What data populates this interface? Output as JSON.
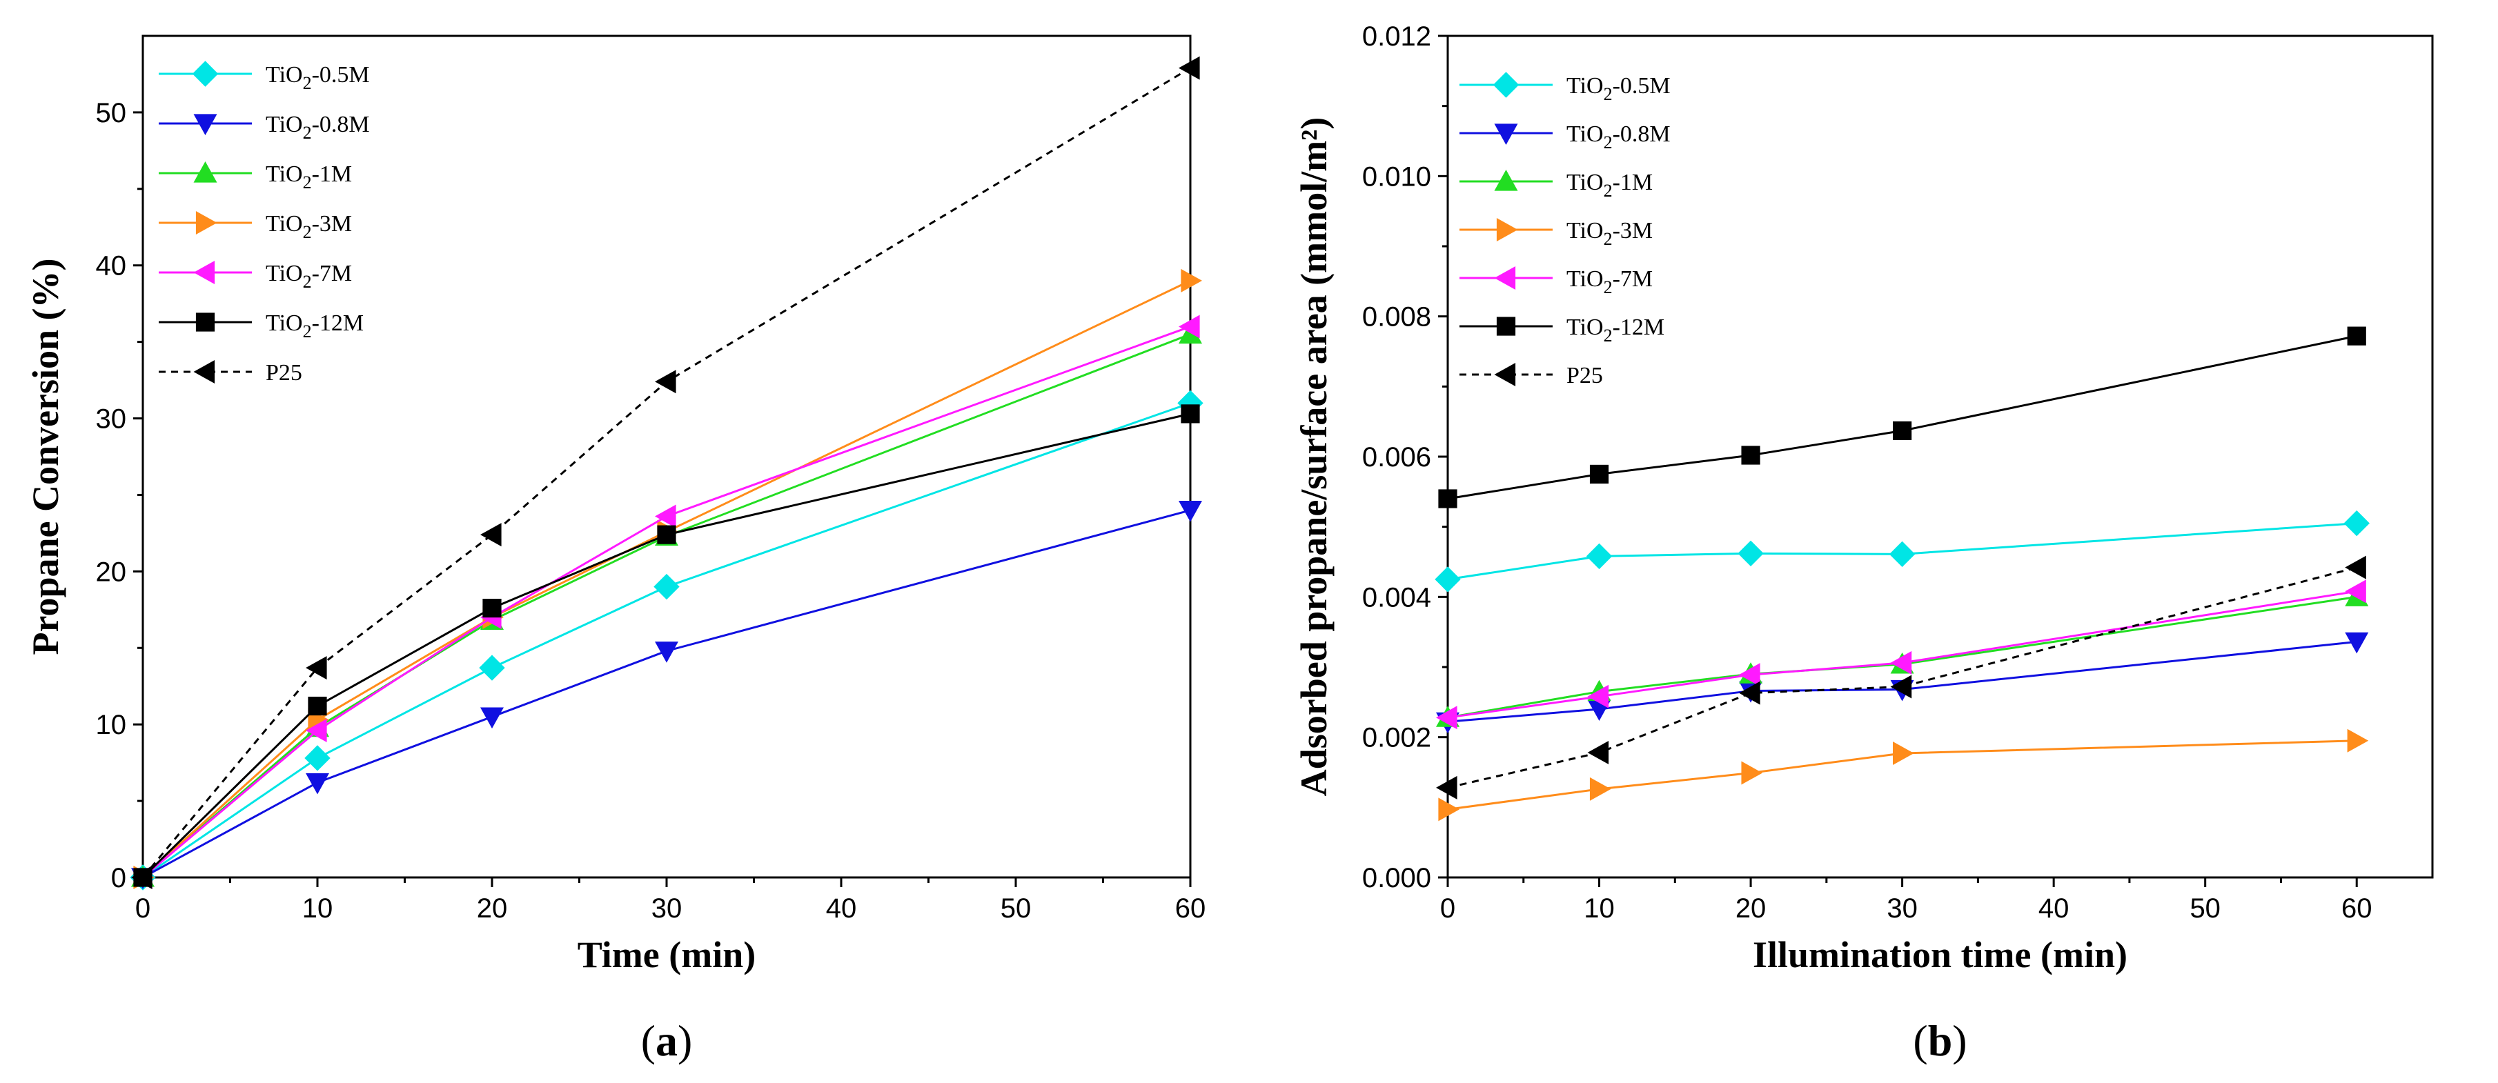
{
  "chart_data": [
    {
      "panel_label": "a",
      "type": "line",
      "xlabel": "Time (min)",
      "ylabel": "Propane Conversion (%)",
      "xlim": [
        0,
        60
      ],
      "ylim": [
        0,
        55
      ],
      "xticks": [
        0,
        10,
        20,
        30,
        40,
        50,
        60
      ],
      "yticks": [
        0,
        10,
        20,
        30,
        40,
        50
      ],
      "x": [
        0,
        10,
        20,
        30,
        60
      ],
      "legend_position": "top-left",
      "series": [
        {
          "name": "TiO2-0.5M",
          "label_base": "TiO",
          "label_sub": "2",
          "label_suffix": "-0.5M",
          "color": "#00e5e5",
          "marker": "diamond",
          "dashed": false,
          "values": [
            0,
            7.8,
            13.7,
            19.0,
            31.0
          ]
        },
        {
          "name": "TiO2-0.8M",
          "label_base": "TiO",
          "label_sub": "2",
          "label_suffix": "-0.8M",
          "color": "#1010e0",
          "marker": "triangle-down",
          "dashed": false,
          "values": [
            0,
            6.2,
            10.5,
            14.8,
            24.0
          ]
        },
        {
          "name": "TiO2-1M",
          "label_base": "TiO",
          "label_sub": "2",
          "label_suffix": "-1M",
          "color": "#22dd22",
          "marker": "triangle-up",
          "dashed": false,
          "values": [
            0,
            9.8,
            16.8,
            22.3,
            35.5
          ]
        },
        {
          "name": "TiO2-3M",
          "label_base": "TiO",
          "label_sub": "2",
          "label_suffix": "-3M",
          "color": "#ff8c1a",
          "marker": "triangle-right",
          "dashed": false,
          "values": [
            0,
            10.3,
            17.0,
            22.6,
            39.0
          ]
        },
        {
          "name": "TiO2-7M",
          "label_base": "TiO",
          "label_sub": "2",
          "label_suffix": "-7M",
          "color": "#ff1aff",
          "marker": "triangle-left",
          "dashed": false,
          "values": [
            0,
            9.6,
            17.0,
            23.6,
            36.0
          ]
        },
        {
          "name": "TiO2-12M",
          "label_base": "TiO",
          "label_sub": "2",
          "label_suffix": "-12M",
          "color": "#000000",
          "marker": "square",
          "dashed": false,
          "values": [
            0,
            11.2,
            17.6,
            22.4,
            30.3
          ]
        },
        {
          "name": "P25",
          "label_base": "P25",
          "label_sub": "",
          "label_suffix": "",
          "color": "#000000",
          "marker": "triangle-left",
          "dashed": true,
          "values": [
            0,
            13.7,
            22.4,
            32.4,
            52.9
          ]
        }
      ]
    },
    {
      "panel_label": "b",
      "type": "line",
      "xlabel": "Illumination time (min)",
      "ylabel": "Adsorbed propane/surface area (mmol/m²)",
      "xlim": [
        0,
        65
      ],
      "ylim": [
        0,
        0.012
      ],
      "xticks": [
        0,
        10,
        20,
        30,
        40,
        50,
        60
      ],
      "yticks": [
        0.0,
        0.002,
        0.004,
        0.006,
        0.008,
        0.01,
        0.012
      ],
      "x": [
        0,
        10,
        20,
        30,
        60
      ],
      "legend_position": "top-left",
      "series": [
        {
          "name": "TiO2-0.5M",
          "label_base": "TiO",
          "label_sub": "2",
          "label_suffix": "-0.5M",
          "color": "#00e5e5",
          "marker": "diamond",
          "dashed": false,
          "values": [
            0.00425,
            0.00458,
            0.00462,
            0.00461,
            0.00505
          ]
        },
        {
          "name": "TiO2-0.8M",
          "label_base": "TiO",
          "label_sub": "2",
          "label_suffix": "-0.8M",
          "color": "#1010e0",
          "marker": "triangle-down",
          "dashed": false,
          "values": [
            0.00222,
            0.0024,
            0.00266,
            0.00268,
            0.00336
          ]
        },
        {
          "name": "TiO2-1M",
          "label_base": "TiO",
          "label_sub": "2",
          "label_suffix": "-1M",
          "color": "#22dd22",
          "marker": "triangle-up",
          "dashed": false,
          "values": [
            0.00228,
            0.00265,
            0.0029,
            0.00304,
            0.004
          ]
        },
        {
          "name": "TiO2-3M",
          "label_base": "TiO",
          "label_sub": "2",
          "label_suffix": "-3M",
          "color": "#ff8c1a",
          "marker": "triangle-right",
          "dashed": false,
          "values": [
            0.00097,
            0.00126,
            0.00149,
            0.00177,
            0.00195
          ]
        },
        {
          "name": "TiO2-7M",
          "label_base": "TiO",
          "label_sub": "2",
          "label_suffix": "-7M",
          "color": "#ff1aff",
          "marker": "triangle-left",
          "dashed": false,
          "values": [
            0.00228,
            0.00258,
            0.00289,
            0.00306,
            0.00408
          ]
        },
        {
          "name": "TiO2-12M",
          "label_base": "TiO",
          "label_sub": "2",
          "label_suffix": "-12M",
          "color": "#000000",
          "marker": "square",
          "dashed": false,
          "values": [
            0.0054,
            0.00575,
            0.00602,
            0.00637,
            0.00772
          ]
        },
        {
          "name": "P25",
          "label_base": "P25",
          "label_sub": "",
          "label_suffix": "",
          "color": "#000000",
          "marker": "triangle-left",
          "dashed": true,
          "values": [
            0.00128,
            0.00178,
            0.00263,
            0.00272,
            0.00442
          ]
        }
      ]
    }
  ]
}
